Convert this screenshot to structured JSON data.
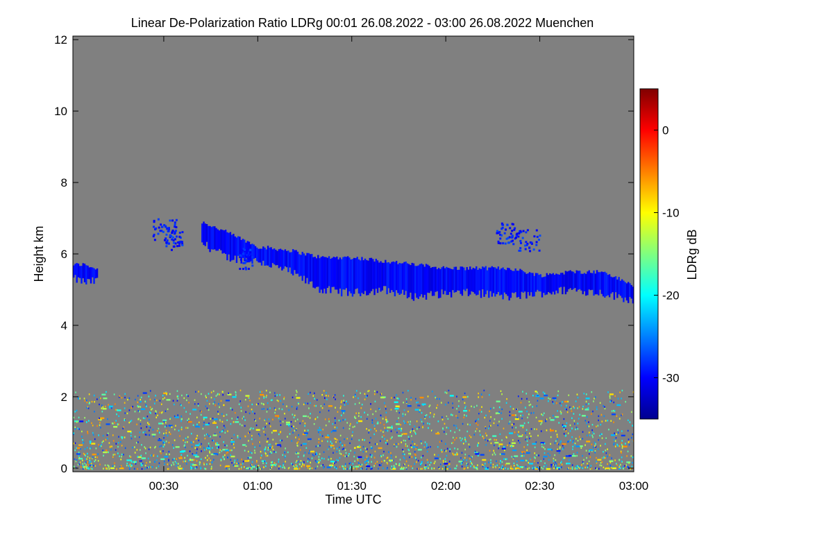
{
  "chart_data": {
    "type": "heatmap",
    "title": "Linear De-Polarization Ratio LDRg   00:01 26.08.2022 - 03:00 26.08.2022 Muenchen",
    "xlabel": "Time UTC",
    "ylabel": "Height km",
    "colorbar_label": "LDRg dB",
    "x_range_minutes": [
      1,
      180
    ],
    "x_ticks": [
      {
        "minute": 30,
        "label": "00:30"
      },
      {
        "minute": 60,
        "label": "01:00"
      },
      {
        "minute": 90,
        "label": "01:30"
      },
      {
        "minute": 120,
        "label": "02:00"
      },
      {
        "minute": 150,
        "label": "02:30"
      },
      {
        "minute": 180,
        "label": "03:00"
      }
    ],
    "y_range_km": [
      -0.1,
      12.1
    ],
    "y_ticks": [
      {
        "value": 0,
        "label": "0"
      },
      {
        "value": 2,
        "label": "2"
      },
      {
        "value": 4,
        "label": "4"
      },
      {
        "value": 6,
        "label": "6"
      },
      {
        "value": 8,
        "label": "8"
      },
      {
        "value": 10,
        "label": "10"
      },
      {
        "value": 12,
        "label": "12"
      }
    ],
    "colorbar_range_db": [
      -35,
      5
    ],
    "colorbar_ticks": [
      {
        "value": 0,
        "label": "0"
      },
      {
        "value": -10,
        "label": "-10"
      },
      {
        "value": -20,
        "label": "-20"
      },
      {
        "value": -30,
        "label": "-30"
      }
    ],
    "background_color": "#808080",
    "features": [
      {
        "name": "cirrus-layer",
        "ldr_db": -30,
        "description_minutes_km": [
          [
            1,
            5.3,
            5.7
          ],
          [
            5,
            5.2,
            5.7
          ],
          [
            9,
            5.25,
            5.55
          ],
          [
            42,
            6.3,
            6.9
          ],
          [
            50,
            5.9,
            6.6
          ],
          [
            60,
            5.8,
            6.2
          ],
          [
            70,
            5.5,
            6.1
          ],
          [
            80,
            5.0,
            5.9
          ],
          [
            90,
            4.9,
            5.9
          ],
          [
            100,
            5.0,
            5.8
          ],
          [
            110,
            4.8,
            5.7
          ],
          [
            120,
            4.9,
            5.6
          ],
          [
            130,
            4.9,
            5.6
          ],
          [
            140,
            4.8,
            5.6
          ],
          [
            150,
            4.9,
            5.4
          ],
          [
            160,
            5.0,
            5.5
          ],
          [
            170,
            4.9,
            5.5
          ],
          [
            180,
            4.7,
            5.1
          ]
        ]
      },
      {
        "name": "boundary-layer-noise",
        "ldr_db_range": [
          -30,
          -5
        ],
        "height_km_range": [
          0,
          2.2
        ]
      }
    ]
  }
}
